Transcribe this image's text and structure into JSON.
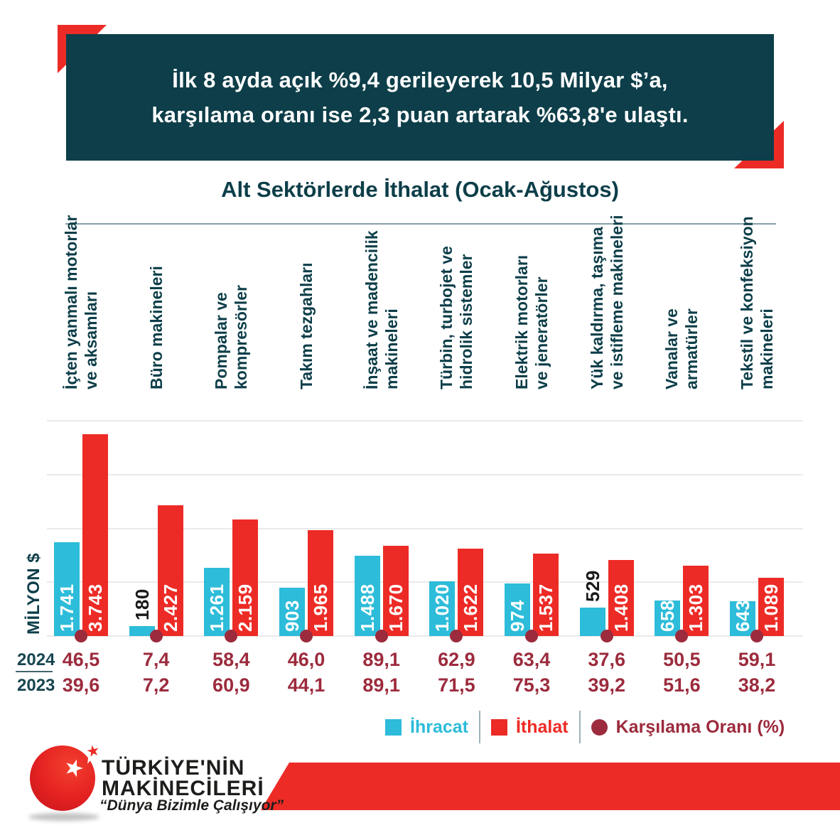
{
  "header": {
    "line1": "İlk 8 ayda açık %9,4 gerileyerek 10,5 Milyar $’a,",
    "line2": "karşılama oranı ise 2,3 puan artarak %63,8'e ulaştı."
  },
  "chart_title": "Alt Sektörlerde İthalat (Ocak-Ağustos)",
  "colors": {
    "teal": "#0d3e49",
    "cyan": "#2dbcd9",
    "red": "#ed2b26",
    "maroon": "#9c2b3d",
    "grid": "#eaeaea",
    "outside_label": "#1a1a1a"
  },
  "chart_data": {
    "type": "bar",
    "title": "Alt Sektörlerde İthalat (Ocak-Ağustos)",
    "ylabel": "MİLYON $",
    "ylim": [
      0,
      4000
    ],
    "gridlines": [
      0,
      1000,
      2000,
      3000,
      4000
    ],
    "legend_position": "bottom",
    "categories": [
      [
        "İçten yanmalı motorlar",
        "ve aksamları"
      ],
      [
        "Büro makineleri"
      ],
      [
        "Pompalar ve",
        "kompresörler"
      ],
      [
        "Takım tezgahları"
      ],
      [
        "İnşaat ve madencilik",
        "makineleri"
      ],
      [
        "Türbin, turbojet ve",
        "hidrolik sistemler"
      ],
      [
        "Elektrik motorları",
        "ve jeneratörler"
      ],
      [
        "Yük kaldırma, taşıma",
        "ve istifleme makineleri"
      ],
      [
        "Vanalar ve",
        "armatürler"
      ],
      [
        "Tekstil ve konfeksiyon",
        "makineleri"
      ]
    ],
    "series": [
      {
        "name": "İhracat",
        "color": "#2dbcd9",
        "values": [
          1741,
          180,
          1261,
          903,
          1488,
          1020,
          974,
          529,
          658,
          643
        ],
        "labels": [
          "1.741",
          "180",
          "1.261",
          "903",
          "1.488",
          "1.020",
          "974",
          "529",
          "658",
          "643"
        ]
      },
      {
        "name": "İthalat",
        "color": "#ed2b26",
        "values": [
          3743,
          2427,
          2159,
          1965,
          1670,
          1622,
          1537,
          1408,
          1303,
          1089
        ],
        "labels": [
          "3.743",
          "2.427",
          "2.159",
          "1.965",
          "1.670",
          "1.622",
          "1.537",
          "1.408",
          "1.303",
          "1.089"
        ]
      }
    ],
    "coverage_ratio": {
      "name": "Karşılama Oranı (%)",
      "color": "#9c2b3d",
      "2024": [
        "46,5",
        "7,4",
        "58,4",
        "46,0",
        "89,1",
        "62,9",
        "63,4",
        "37,6",
        "50,5",
        "59,1"
      ],
      "2023": [
        "39,6",
        "7,2",
        "60,9",
        "44,1",
        "89,1",
        "71,5",
        "75,3",
        "39,2",
        "51,6",
        "38,2"
      ]
    }
  },
  "rows": {
    "label_2024": "2024",
    "label_2023": "2023"
  },
  "legend": [
    {
      "label": "İhracat",
      "color": "#2dbcd9",
      "shape": "square"
    },
    {
      "label": "İthalat",
      "color": "#ed2b26",
      "shape": "square"
    },
    {
      "label": "Karşılama Oranı (%)",
      "color": "#9c2b3d",
      "shape": "circle"
    }
  ],
  "footer": {
    "brand_line1": "TÜRKİYE'NİN",
    "brand_line2": "MAKİNECİLERİ",
    "slogan": "“Dünya Bizimle Çalışıyor”"
  }
}
